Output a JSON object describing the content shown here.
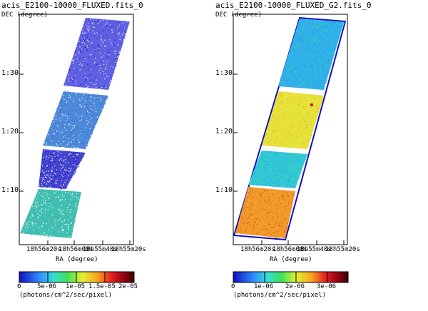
{
  "panels": [
    {
      "title": "acis_E2100-10000_FLUXED.fits_0",
      "y_label": "DEC (degree)",
      "x_label": "RA (degree)",
      "y_ticks": [
        "1:30",
        "1:20",
        "1:10"
      ],
      "x_ticks": [
        "18h56m20s",
        "18h56m00s",
        "18h55m40s",
        "18h55m20s"
      ],
      "colorbar": {
        "tick_labels": [
          "0",
          "5e-06",
          "1e-05",
          "1.5e-05",
          "2e-05"
        ],
        "unit": "(photons/cm^2/sec/pixel)"
      },
      "colors": {
        "top_strip": "#2b2bd8",
        "second_block": "#3c7bd6",
        "third_block": "#2424c8",
        "bottom_block": "#2fb8a8"
      }
    },
    {
      "title": "acis_E2100-10000_FLUXED_G2.fits_0",
      "y_label": "DEC (degree)",
      "x_label": "RA (degree)",
      "y_ticks": [
        "1:30",
        "1:20",
        "1:10"
      ],
      "x_ticks": [
        "18h56m20s",
        "18h56m00s",
        "18h55m40s",
        "18h55m20s"
      ],
      "colorbar": {
        "tick_labels": [
          "0",
          "1e-06",
          "2e-06",
          "3e-06"
        ],
        "unit": "(photons/cm^2/sec/pixel)"
      },
      "colors": {
        "top_strip": "#2fb0e8",
        "second_block": "#e6e23a",
        "third_block": "#2fc6d8",
        "bottom_block": "#f09a2a"
      }
    }
  ]
}
